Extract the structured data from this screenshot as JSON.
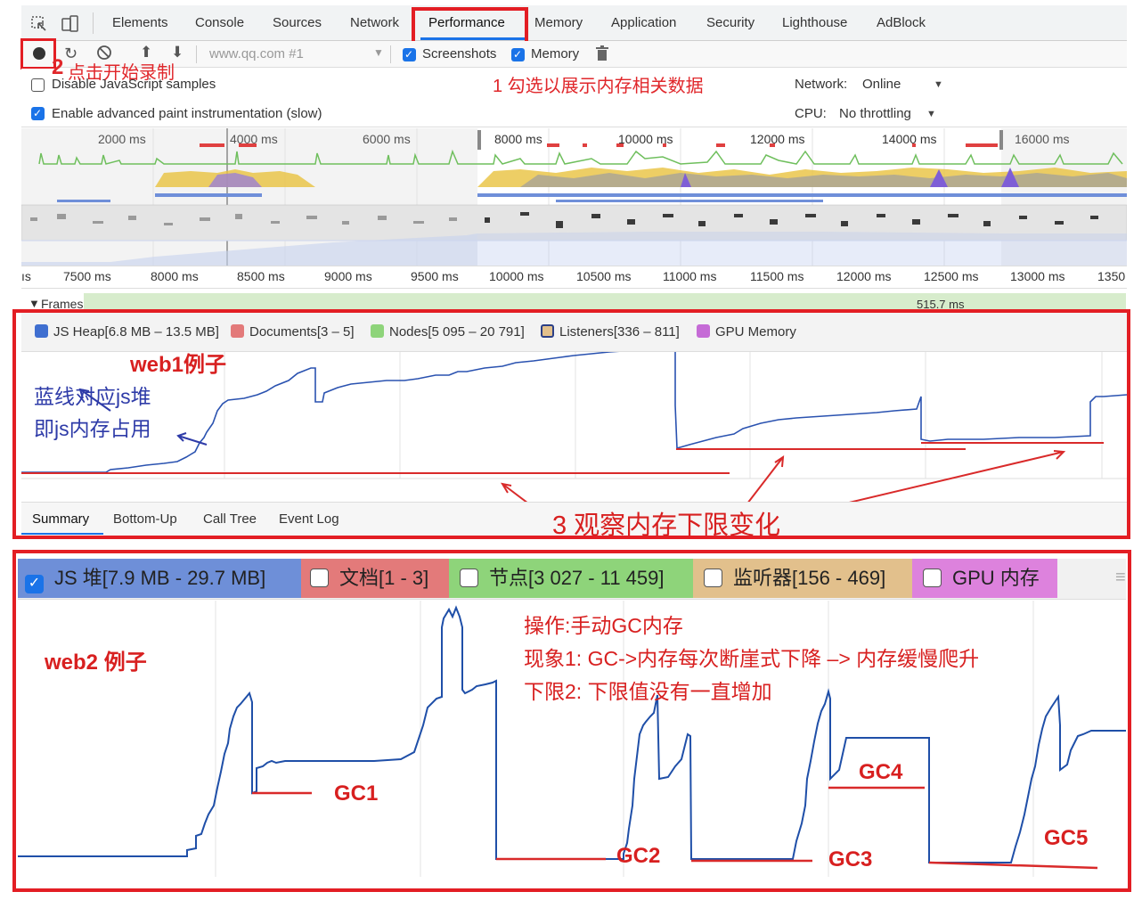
{
  "devtools": {
    "tabs": [
      "Elements",
      "Console",
      "Sources",
      "Network",
      "Performance",
      "Memory",
      "Application",
      "Security",
      "Lighthouse",
      "AdBlock"
    ],
    "active_tab": "Performance",
    "toolbar": {
      "target": "www.qq.com #1",
      "screenshots_label": "Screenshots",
      "memory_label": "Memory"
    },
    "settings": {
      "disable_js_samples": "Disable JavaScript samples",
      "enable_paint": "Enable advanced paint instrumentation (slow)",
      "network_label": "Network:",
      "network_value": "Online",
      "cpu_label": "CPU:",
      "cpu_value": "No throttling"
    },
    "overview_ticks": [
      "2000 ms",
      "4000 ms",
      "6000 ms",
      "8000 ms",
      "10000 ms",
      "12000 ms",
      "14000 ms",
      "16000 ms"
    ],
    "timeline_ticks": [
      "ıs",
      "7500 ms",
      "8000 ms",
      "8500 ms",
      "9000 ms",
      "9500 ms",
      "10000 ms",
      "10500 ms",
      "11000 ms",
      "11500 ms",
      "12000 ms",
      "12500 ms",
      "13000 ms",
      "1350"
    ],
    "frames_label": "Frames",
    "frames_time": "515.7 ms",
    "memory_legend": {
      "js_heap": "JS Heap[6.8 MB – 13.5 MB]",
      "documents": "Documents[3 – 5]",
      "nodes": "Nodes[5 095 – 20 791]",
      "listeners": "Listeners[336 – 811]",
      "gpu": "GPU Memory"
    },
    "bottom_tabs": [
      "Summary",
      "Bottom-Up",
      "Call Tree",
      "Event Log"
    ]
  },
  "annotations": {
    "step2": "点击开始录制",
    "step2_num": "2",
    "step1": "1  勾选以展示内存相关数据",
    "web1": "web1例子",
    "blue1": "蓝线对应js堆",
    "blue2": "即js内存占用",
    "step3": "3 观察内存下限变化"
  },
  "panel2": {
    "legend": {
      "js_heap": "JS 堆[7.9 MB - 29.7 MB]",
      "documents": "文档[1 - 3]",
      "nodes": "节点[3 027 - 11 459]",
      "listeners": "监听器[156 - 469]",
      "gpu": "GPU 内存"
    },
    "web2": "web2 例子",
    "notes": [
      "操作:手动GC内存",
      "现象1: GC->内存每次断崖式下降 –> 内存缓慢爬升",
      "下限2: 下限值没有一直增加"
    ],
    "gc_labels": [
      "GC1",
      "GC2",
      "GC3",
      "GC4",
      "GC5"
    ]
  },
  "colors": {
    "accent_red": "#e31e24",
    "heap_blue": "#1f4fa8",
    "legend_js": "#6e8fd8",
    "legend_docs": "#e37a7a",
    "legend_nodes": "#8ed47a",
    "legend_listeners": "#e2c08c",
    "legend_gpu": "#dd82dd"
  }
}
